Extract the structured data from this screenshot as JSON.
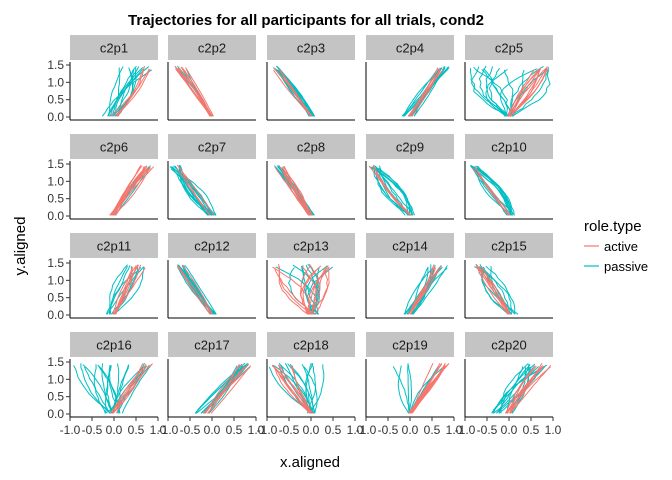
{
  "chart_data": {
    "type": "line",
    "title": "Trajectories for all participants for all trials, cond2",
    "xlabel": "x.aligned",
    "ylabel": "y.aligned",
    "xlim": [
      -1.0,
      1.0
    ],
    "ylim": [
      0.0,
      1.5
    ],
    "x_ticks": [
      -1.0,
      -0.5,
      0.0,
      0.5,
      1.0
    ],
    "x_tick_labels": [
      "-1.0",
      "-0.5",
      "0.0",
      "0.5",
      "1.0"
    ],
    "y_ticks": [
      0.0,
      0.5,
      1.0,
      1.5
    ],
    "y_tick_labels": [
      "0.0",
      "0.5",
      "1.0",
      "1.5"
    ],
    "facets": [
      "c2p1",
      "c2p2",
      "c2p3",
      "c2p4",
      "c2p5",
      "c2p6",
      "c2p7",
      "c2p8",
      "c2p9",
      "c2p10",
      "c2p11",
      "c2p12",
      "c2p13",
      "c2p14",
      "c2p15",
      "c2p16",
      "c2p17",
      "c2p18",
      "c2p19",
      "c2p20"
    ],
    "facet_layout": {
      "nrow": 4,
      "ncol": 5
    },
    "legend": {
      "title": "role.type",
      "position": "right",
      "entries": [
        {
          "name": "active",
          "color": "#F8766D"
        },
        {
          "name": "passive",
          "color": "#00BFC4"
        }
      ]
    },
    "series": [
      {
        "name": "active",
        "color": "#F8766D"
      },
      {
        "name": "passive",
        "color": "#00BFC4"
      }
    ],
    "trajectory_shapes": {
      "c2p1": {
        "passive": {
          "start_x": [
            -0.3,
            0.1
          ],
          "end_x": [
            0.1,
            0.9
          ],
          "curve": 0.25,
          "n": 12
        },
        "active": {
          "start_x": [
            -0.1,
            0.1
          ],
          "end_x": [
            0.6,
            0.9
          ],
          "curve": 0.15,
          "n": 4
        }
      },
      "c2p2": {
        "passive": {
          "start_x": [
            -0.05,
            0.05
          ],
          "end_x": [
            -0.8,
            -0.5
          ],
          "curve": 0.1,
          "n": 3
        },
        "active": {
          "start_x": [
            -0.05,
            0.05
          ],
          "end_x": [
            -0.85,
            -0.6
          ],
          "curve": 0.05,
          "n": 12
        }
      },
      "c2p3": {
        "passive": {
          "start_x": [
            -0.05,
            0.1
          ],
          "end_x": [
            -0.9,
            -0.7
          ],
          "curve": 0.1,
          "n": 12
        },
        "active": {
          "start_x": [
            -0.05,
            0.05
          ],
          "end_x": [
            -0.85,
            -0.7
          ],
          "curve": 0.05,
          "n": 5
        }
      },
      "c2p4": {
        "passive": {
          "start_x": [
            -0.2,
            0.1
          ],
          "end_x": [
            0.6,
            0.9
          ],
          "curve": 0.1,
          "n": 12
        },
        "active": {
          "start_x": [
            -0.05,
            0.05
          ],
          "end_x": [
            0.6,
            0.85
          ],
          "curve": 0.05,
          "n": 5
        }
      },
      "c2p5": {
        "passive": {
          "start_x": [
            -0.1,
            0.1
          ],
          "end_x": [
            -0.9,
            0.95
          ],
          "curve": 0.5,
          "n": 16
        },
        "active": {
          "start_x": [
            -0.05,
            0.1
          ],
          "end_x": [
            0.5,
            0.95
          ],
          "curve": 0.15,
          "n": 10
        }
      },
      "c2p6": {
        "passive": {
          "start_x": [
            -0.05,
            0.05
          ],
          "end_x": [
            0.7,
            0.9
          ],
          "curve": 0.05,
          "n": 3
        },
        "active": {
          "start_x": [
            -0.1,
            0.05
          ],
          "end_x": [
            0.6,
            0.9
          ],
          "curve": 0.1,
          "n": 12
        }
      },
      "c2p7": {
        "passive": {
          "start_x": [
            -0.1,
            0.1
          ],
          "end_x": [
            -0.95,
            -0.7
          ],
          "curve": 0.25,
          "n": 14
        },
        "active": {
          "start_x": [
            -0.05,
            0.05
          ],
          "end_x": [
            -0.9,
            -0.7
          ],
          "curve": 0.1,
          "n": 3
        }
      },
      "c2p8": {
        "passive": {
          "start_x": [
            -0.05,
            0.1
          ],
          "end_x": [
            -0.85,
            -0.65
          ],
          "curve": 0.1,
          "n": 10
        },
        "active": {
          "start_x": [
            -0.05,
            0.05
          ],
          "end_x": [
            -0.85,
            -0.6
          ],
          "curve": 0.1,
          "n": 8
        }
      },
      "c2p9": {
        "passive": {
          "start_x": [
            -0.1,
            0.1
          ],
          "end_x": [
            -0.95,
            -0.7
          ],
          "curve": 0.3,
          "n": 14
        },
        "active": {
          "start_x": [
            -0.05,
            0.05
          ],
          "end_x": [
            -0.95,
            -0.8
          ],
          "curve": 0.1,
          "n": 3
        }
      },
      "c2p10": {
        "passive": {
          "start_x": [
            -0.05,
            0.15
          ],
          "end_x": [
            -0.9,
            -0.7
          ],
          "curve": 0.2,
          "n": 14
        },
        "active": {
          "start_x": [
            -0.05,
            0.05
          ],
          "end_x": [
            -0.85,
            -0.75
          ],
          "curve": 0.05,
          "n": 3
        }
      },
      "c2p11": {
        "passive": {
          "start_x": [
            -0.2,
            0.0
          ],
          "end_x": [
            0.3,
            0.8
          ],
          "curve": 0.2,
          "n": 8
        },
        "active": {
          "start_x": [
            -0.05,
            0.05
          ],
          "end_x": [
            0.4,
            0.8
          ],
          "curve": 0.1,
          "n": 8
        }
      },
      "c2p12": {
        "passive": {
          "start_x": [
            -0.05,
            0.1
          ],
          "end_x": [
            -0.8,
            -0.6
          ],
          "curve": 0.1,
          "n": 12
        },
        "active": {
          "start_x": [
            -0.05,
            0.05
          ],
          "end_x": [
            -0.8,
            -0.65
          ],
          "curve": 0.05,
          "n": 4
        }
      },
      "c2p13": {
        "passive": {
          "start_x": [
            -0.2,
            0.2
          ],
          "end_x": [
            -0.9,
            0.7
          ],
          "curve": 0.4,
          "n": 10
        },
        "active": {
          "start_x": [
            -0.1,
            0.1
          ],
          "end_x": [
            -0.9,
            0.5
          ],
          "curve": 0.3,
          "n": 14
        }
      },
      "c2p14": {
        "passive": {
          "start_x": [
            -0.15,
            0.1
          ],
          "end_x": [
            0.4,
            0.9
          ],
          "curve": 0.15,
          "n": 12
        },
        "active": {
          "start_x": [
            -0.05,
            0.05
          ],
          "end_x": [
            0.4,
            0.8
          ],
          "curve": 0.1,
          "n": 5
        }
      },
      "c2p15": {
        "passive": {
          "start_x": [
            -0.05,
            0.2
          ],
          "end_x": [
            -0.8,
            -0.4
          ],
          "curve": 0.4,
          "n": 10
        },
        "active": {
          "start_x": [
            -0.05,
            0.05
          ],
          "end_x": [
            -0.8,
            -0.55
          ],
          "curve": 0.1,
          "n": 6
        }
      },
      "c2p16": {
        "passive": {
          "start_x": [
            -0.2,
            0.2
          ],
          "end_x": [
            -0.95,
            0.95
          ],
          "curve": 0.2,
          "n": 20
        },
        "active": {
          "start_x": [
            -0.1,
            0.1
          ],
          "end_x": [
            0.3,
            0.95
          ],
          "curve": 0.1,
          "n": 6
        }
      },
      "c2p17": {
        "passive": {
          "start_x": [
            -0.4,
            0.0
          ],
          "end_x": [
            0.5,
            0.95
          ],
          "curve": 0.1,
          "n": 12
        },
        "active": {
          "start_x": [
            -0.2,
            0.0
          ],
          "end_x": [
            0.6,
            0.9
          ],
          "curve": 0.05,
          "n": 6
        }
      },
      "c2p18": {
        "passive": {
          "start_x": [
            -0.1,
            0.1
          ],
          "end_x": [
            -0.95,
            0.6
          ],
          "curve": 0.2,
          "n": 14
        },
        "active": {
          "start_x": [
            -0.05,
            0.05
          ],
          "end_x": [
            -0.9,
            -0.4
          ],
          "curve": 0.15,
          "n": 8
        }
      },
      "c2p19": {
        "passive": {
          "start_x": [
            -0.05,
            0.05
          ],
          "end_x": [
            -0.5,
            0.9
          ],
          "curve": 0.15,
          "n": 6
        },
        "active": {
          "start_x": [
            -0.05,
            0.05
          ],
          "end_x": [
            0.5,
            0.9
          ],
          "curve": 0.05,
          "n": 12
        }
      },
      "c2p20": {
        "passive": {
          "start_x": [
            -0.4,
            0.1
          ],
          "end_x": [
            0.3,
            0.95
          ],
          "curve": 0.2,
          "n": 14
        },
        "active": {
          "start_x": [
            -0.1,
            0.05
          ],
          "end_x": [
            0.5,
            0.95
          ],
          "curve": 0.1,
          "n": 8
        }
      }
    }
  }
}
